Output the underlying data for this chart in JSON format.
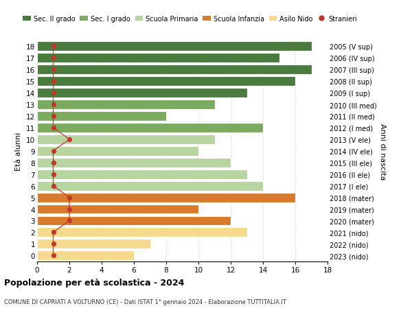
{
  "ages": [
    18,
    17,
    16,
    15,
    14,
    13,
    12,
    11,
    10,
    9,
    8,
    7,
    6,
    5,
    4,
    3,
    2,
    1,
    0
  ],
  "right_labels": [
    "2005 (V sup)",
    "2006 (IV sup)",
    "2007 (III sup)",
    "2008 (II sup)",
    "2009 (I sup)",
    "2010 (III med)",
    "2011 (II med)",
    "2012 (I med)",
    "2013 (V ele)",
    "2014 (IV ele)",
    "2015 (III ele)",
    "2016 (II ele)",
    "2017 (I ele)",
    "2018 (mater)",
    "2019 (mater)",
    "2020 (mater)",
    "2021 (nido)",
    "2022 (nido)",
    "2023 (nido)"
  ],
  "bar_values": [
    17,
    15,
    17,
    16,
    13,
    11,
    8,
    14,
    11,
    10,
    12,
    13,
    14,
    16,
    10,
    12,
    13,
    7,
    6
  ],
  "bar_colors": [
    "#4a7c3f",
    "#4a7c3f",
    "#4a7c3f",
    "#4a7c3f",
    "#4a7c3f",
    "#7aab5e",
    "#7aab5e",
    "#7aab5e",
    "#b8d4a0",
    "#b8d4a0",
    "#b8d4a0",
    "#b8d4a0",
    "#b8d4a0",
    "#d87c2b",
    "#d87c2b",
    "#d87c2b",
    "#f5d98e",
    "#f5d98e",
    "#f5d98e"
  ],
  "stranieri_values": [
    1,
    1,
    1,
    1,
    1,
    1,
    1,
    1,
    2,
    1,
    1,
    1,
    1,
    2,
    2,
    2,
    1,
    1,
    1
  ],
  "title": "Popolazione per età scolastica - 2024",
  "subtitle": "COMUNE DI CAPRIATI A VOLTURNO (CE) - Dati ISTAT 1° gennaio 2024 - Elaborazione TUTTITALIA.IT",
  "ylabel_left": "Età alunni",
  "ylabel_right": "Anni di nascita",
  "legend_labels": [
    "Sec. II grado",
    "Sec. I grado",
    "Scuola Primaria",
    "Scuola Infanzia",
    "Asilo Nido",
    "Stranieri"
  ],
  "legend_colors": [
    "#4a7c3f",
    "#7aab5e",
    "#b8d4a0",
    "#d87c2b",
    "#f5d98e",
    "#c0392b"
  ],
  "stranieri_color": "#c0392b",
  "grid_color": "#cccccc",
  "background_color": "#ffffff",
  "xlim": [
    0,
    18
  ],
  "ylim": [
    -0.5,
    18.5
  ]
}
